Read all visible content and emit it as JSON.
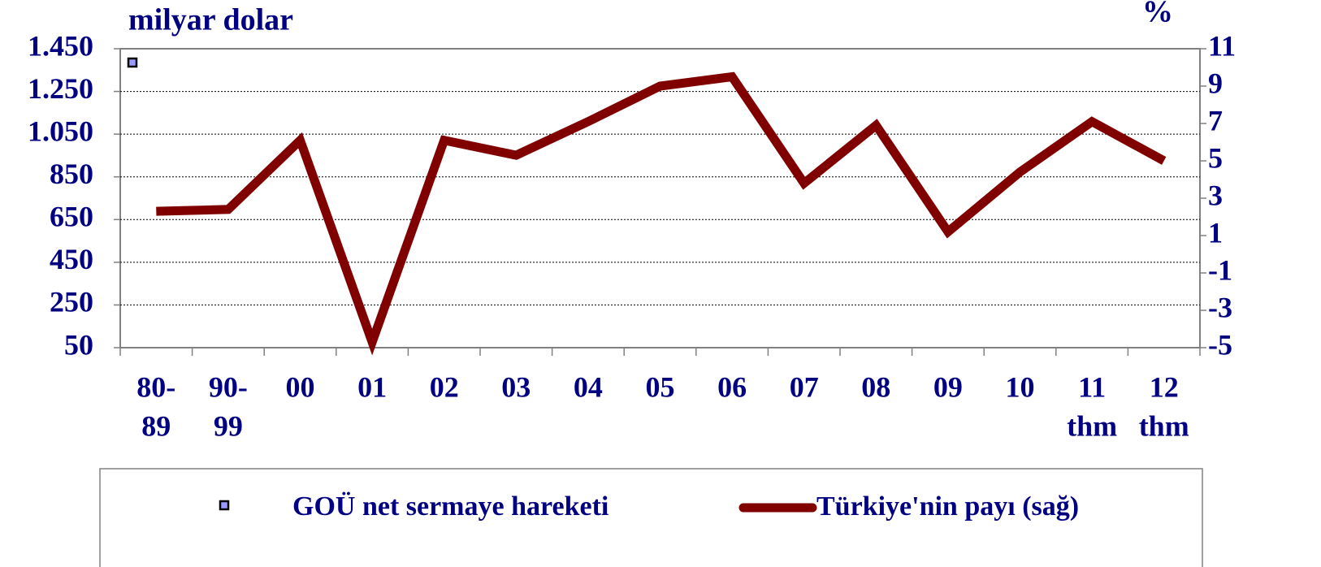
{
  "chart_data": {
    "type": "line",
    "y_label": "milyar dolar",
    "y2_label": "%",
    "categories": [
      [
        "80-",
        "89"
      ],
      [
        "90-",
        "99"
      ],
      [
        "00"
      ],
      [
        "01"
      ],
      [
        "02"
      ],
      [
        "03"
      ],
      [
        "04"
      ],
      [
        "05"
      ],
      [
        "06"
      ],
      [
        "07"
      ],
      [
        "08"
      ],
      [
        "09"
      ],
      [
        "10"
      ],
      [
        "11",
        "thm"
      ],
      [
        "12",
        "thm"
      ]
    ],
    "series": [
      {
        "name": "GOÜ net sermaye hareketi",
        "color": "#9999ff",
        "values": [
          null,
          null,
          null,
          null,
          null,
          null,
          null,
          null,
          null,
          null,
          null,
          null,
          null,
          null,
          null
        ]
      },
      {
        "name": "Türkiye'nin payı (sağ)",
        "color": "#800000",
        "axis": "y2",
        "values": [
          2.3,
          2.4,
          6.1,
          -4.7,
          6.1,
          5.3,
          7.1,
          9.0,
          9.5,
          3.8,
          6.9,
          1.2,
          4.4,
          7.1,
          5.0
        ]
      }
    ],
    "ylim": [
      50,
      1450
    ],
    "yticks": [
      50,
      250,
      450,
      650,
      850,
      {
        "value": 1050,
        "label": "1.050"
      },
      {
        "value": 1250,
        "label": "1.250"
      },
      {
        "value": 1450,
        "label": "1.450"
      }
    ],
    "y2lim": [
      -5,
      11
    ],
    "y2ticks": [
      -5,
      -3,
      -1,
      1,
      3,
      5,
      7,
      9,
      11
    ],
    "grid": true
  }
}
